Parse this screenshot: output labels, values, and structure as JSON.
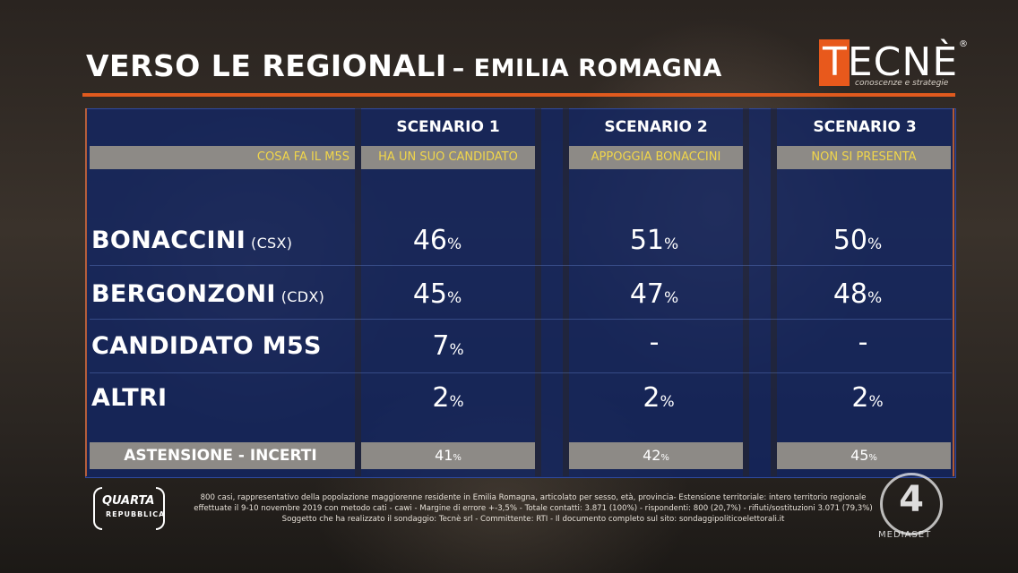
{
  "header": {
    "title_main": "VERSO LE REGIONALI",
    "title_sub": "– EMILIA ROMAGNA"
  },
  "logo": {
    "name": "TECNÈ",
    "registered": "®",
    "tagline": "conoscenze e strategie"
  },
  "chart_data": {
    "type": "table",
    "title": "VERSO LE REGIONALI – EMILIA ROMAGNA",
    "condition_label": "COSA FA IL M5S",
    "scenarios": [
      {
        "name": "SCENARIO 1",
        "condition": "HA UN SUO CANDIDATO"
      },
      {
        "name": "SCENARIO 2",
        "condition": "APPOGGIA BONACCINI"
      },
      {
        "name": "SCENARIO 3",
        "condition": "NON SI PRESENTA"
      }
    ],
    "rows": [
      {
        "label": "BONACCINI",
        "suffix": "(CSX)",
        "values": [
          "46",
          "51",
          "50"
        ]
      },
      {
        "label": "BERGONZONI",
        "suffix": "(CDX)",
        "values": [
          "45",
          "47",
          "48"
        ]
      },
      {
        "label": "CANDIDATO M5S",
        "suffix": "",
        "values": [
          "7",
          "-",
          "-"
        ]
      },
      {
        "label": "ALTRI",
        "suffix": "",
        "values": [
          "2",
          "2",
          "2"
        ]
      }
    ],
    "unit": "%",
    "abstention": {
      "label": "ASTENSIONE - INCERTI",
      "values": [
        "41",
        "42",
        "45"
      ]
    }
  },
  "footer": {
    "lines": [
      "800 casi, rappresentativo della popolazione maggiorenne residente in Emilia Romagna, articolato per sesso, età, provincia- Estensione territoriale: intero territorio regionale",
      "effettuate il 9-10 novembre 2019 con metodo cati - cawi - Margine di errore +-3,5% - Totale contatti: 3.871 (100%) - rispondenti: 800 (20,7%) - rifiuti/sostituzioni 3.071 (79,3%)",
      "Soggetto che ha realizzato il sondaggio: Tecnè srl - Committente: RTI - Il documento completo sul sito: sondaggipoliticoelettorali.it"
    ]
  },
  "program_logo": {
    "name": "QUARTA",
    "sub": "REPUBBLICA"
  },
  "channel": {
    "number": "4",
    "network": "MEDIASET"
  }
}
